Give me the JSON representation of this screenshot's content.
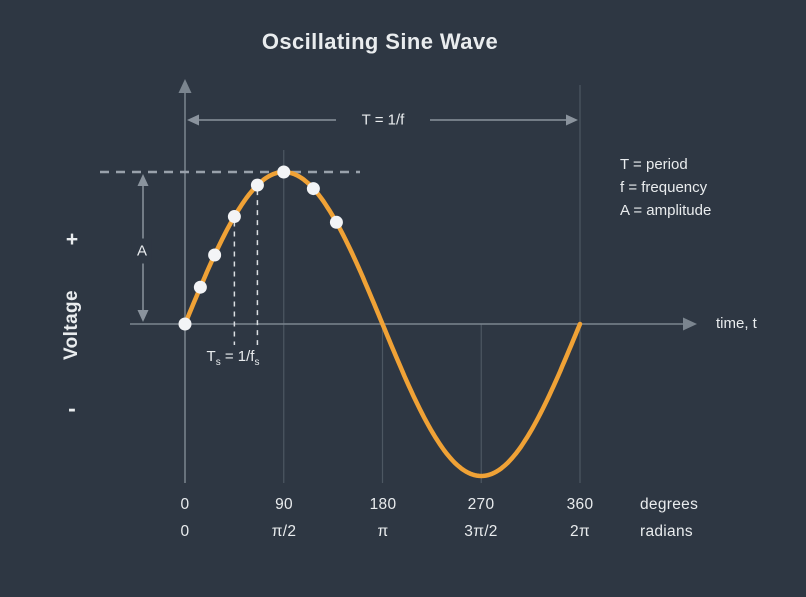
{
  "title": "Oscillating Sine Wave",
  "colors": {
    "background": "#2e3743",
    "curve": "#f0a236",
    "text": "#e9ecee",
    "grid": "#4d5762",
    "axis": "#7b858f",
    "annotation": "#8a939d",
    "dashed_peak": "#99a1ab",
    "sample_dash": "#d9dde1",
    "dot_fill": "#f3f4f6"
  },
  "legend": {
    "period": "T = period",
    "frequency": "f = frequency",
    "amplitude": "A = amplitude"
  },
  "labels": {
    "period_arrow": "T = 1/f",
    "amplitude": "A",
    "sampling_t": "T",
    "sampling_t_sub": "s",
    "sampling_mid": " = 1/f",
    "sampling_f_sub": "s",
    "time_axis": "time, t",
    "voltage": "Voltage",
    "plus": "+",
    "minus": "-"
  },
  "ticks": {
    "degrees": [
      "0",
      "90",
      "180",
      "270",
      "360"
    ],
    "degrees_unit": "degrees",
    "radians": [
      "0",
      "π/2",
      "π",
      "3π/2",
      "2π"
    ],
    "radians_unit": "radians"
  },
  "chart_data": {
    "type": "line",
    "title": "Oscillating Sine Wave",
    "xlabel": "time, t",
    "ylabel": "Voltage",
    "function": "V(θ) = A·sin(θ)",
    "domain_degrees": [
      0,
      360
    ],
    "amplitude_label": "A",
    "x_ticks": [
      {
        "degrees": 0,
        "radians": "0"
      },
      {
        "degrees": 90,
        "radians": "π/2"
      },
      {
        "degrees": 180,
        "radians": "π"
      },
      {
        "degrees": 270,
        "radians": "3π/2"
      },
      {
        "degrees": 360,
        "radians": "2π"
      }
    ],
    "key_curve_points": [
      {
        "deg": 0,
        "v": 0
      },
      {
        "deg": 90,
        "v": 1
      },
      {
        "deg": 180,
        "v": 0
      },
      {
        "deg": 270,
        "v": -1
      },
      {
        "deg": 360,
        "v": 0
      }
    ],
    "sample_points": [
      {
        "deg": 0,
        "v": 0
      },
      {
        "deg": 14,
        "v": 0.242
      },
      {
        "deg": 27,
        "v": 0.454
      },
      {
        "deg": 45,
        "v": 0.707
      },
      {
        "deg": 66,
        "v": 0.914
      },
      {
        "deg": 90,
        "v": 1
      },
      {
        "deg": 117,
        "v": 0.891
      },
      {
        "deg": 138,
        "v": 0.669
      }
    ],
    "sampling_interval_lines_deg": [
      45,
      66
    ],
    "gridlines_deg": [
      90,
      180,
      270,
      360
    ],
    "annotations": {
      "period": "T = 1/f",
      "sampling_period": "Ts = 1/fs",
      "legend": [
        "T = period",
        "f = frequency",
        "A = amplitude"
      ]
    },
    "legend_position": "right"
  }
}
